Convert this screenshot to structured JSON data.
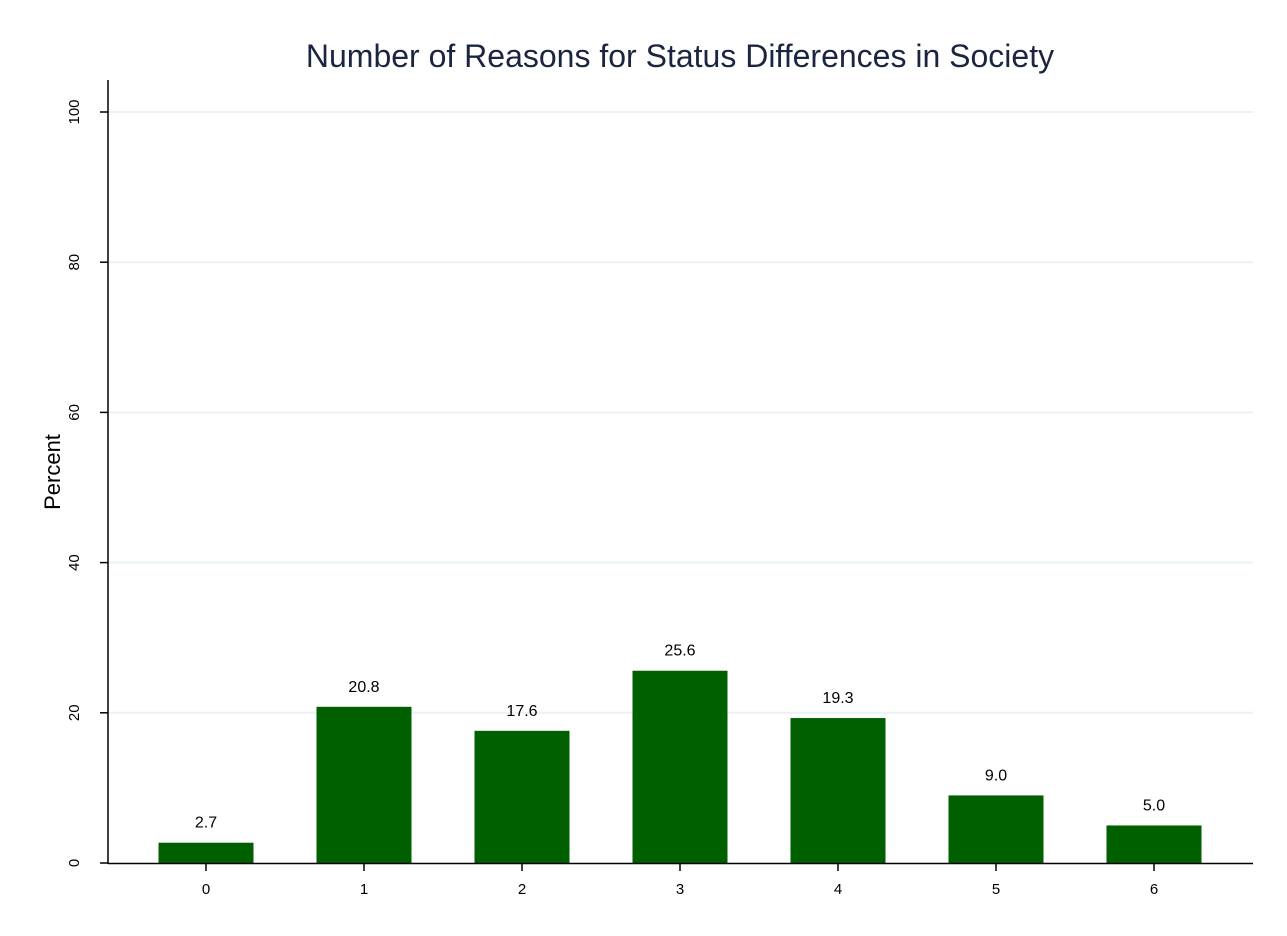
{
  "chart_data": {
    "type": "bar",
    "title": "Number of Reasons for Status Differences in Society",
    "xlabel": "",
    "ylabel": "Percent",
    "categories": [
      "0",
      "1",
      "2",
      "3",
      "4",
      "5",
      "6"
    ],
    "values": [
      2.7,
      20.8,
      17.6,
      25.6,
      19.3,
      9.0,
      5.0
    ],
    "data_labels": [
      "2.7",
      "20.8",
      "17.6",
      "25.6",
      "19.3",
      "9.0",
      "5.0"
    ],
    "ylim": [
      0,
      100
    ],
    "yticks": [
      0,
      20,
      40,
      60,
      80,
      100
    ],
    "grid": true,
    "legend": "none",
    "bar_color": "#006000",
    "grid_color": "#eaf2f3",
    "title_color": "#1a2640"
  }
}
